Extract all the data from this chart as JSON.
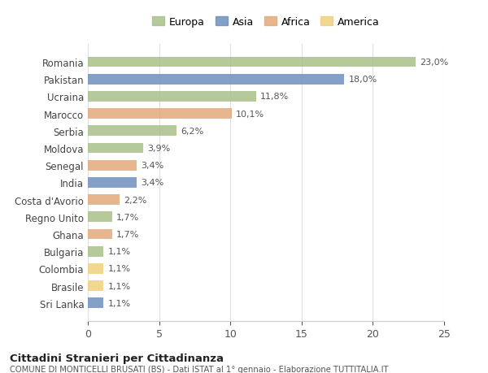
{
  "countries": [
    "Romania",
    "Pakistan",
    "Ucraina",
    "Marocco",
    "Serbia",
    "Moldova",
    "Senegal",
    "India",
    "Costa d'Avorio",
    "Regno Unito",
    "Ghana",
    "Bulgaria",
    "Colombia",
    "Brasile",
    "Sri Lanka"
  ],
  "values": [
    23.0,
    18.0,
    11.8,
    10.1,
    6.2,
    3.9,
    3.4,
    3.4,
    2.2,
    1.7,
    1.7,
    1.1,
    1.1,
    1.1,
    1.1
  ],
  "labels": [
    "23,0%",
    "18,0%",
    "11,8%",
    "10,1%",
    "6,2%",
    "3,9%",
    "3,4%",
    "3,4%",
    "2,2%",
    "1,7%",
    "1,7%",
    "1,1%",
    "1,1%",
    "1,1%",
    "1,1%"
  ],
  "continents": [
    "Europa",
    "Asia",
    "Europa",
    "Africa",
    "Europa",
    "Europa",
    "Africa",
    "Asia",
    "Africa",
    "Europa",
    "Africa",
    "Europa",
    "America",
    "America",
    "Asia"
  ],
  "colors": {
    "Europa": "#a8c08a",
    "Asia": "#6f8fbf",
    "Africa": "#e4a97a",
    "America": "#f0d080"
  },
  "legend_order": [
    "Europa",
    "Asia",
    "Africa",
    "America"
  ],
  "xlim": [
    0,
    25
  ],
  "xticks": [
    0,
    5,
    10,
    15,
    20,
    25
  ],
  "title": "Cittadini Stranieri per Cittadinanza",
  "subtitle": "COMUNE DI MONTICELLI BRUSATI (BS) - Dati ISTAT al 1° gennaio - Elaborazione TUTTITALIA.IT",
  "bg_color": "#ffffff",
  "grid_color": "#e0e0e0",
  "bar_alpha": 0.85
}
